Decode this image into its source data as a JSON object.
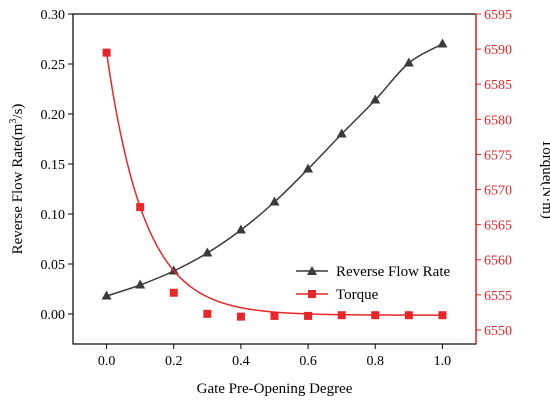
{
  "chart_data": {
    "type": "line",
    "xlabel": "Gate Pre-Opening Degree",
    "xlim": [
      -0.1,
      1.1
    ],
    "x_ticks": [
      "0.0",
      "0.2",
      "0.4",
      "0.6",
      "0.8",
      "1.0"
    ],
    "y_left": {
      "label_main": "Reverse Flow Rate(m",
      "label_sup": "3",
      "label_tail": "/s)",
      "lim": [
        -0.03,
        0.3
      ],
      "ticks": [
        "0.00",
        "0.05",
        "0.10",
        "0.15",
        "0.20",
        "0.25",
        "0.30"
      ],
      "color": "#000000"
    },
    "y_right": {
      "label": "Torque(N·m)",
      "lim": [
        6548,
        6595
      ],
      "ticks": [
        "6550",
        "6555",
        "6560",
        "6565",
        "6570",
        "6575",
        "6580",
        "6585",
        "6590",
        "6595"
      ],
      "color": "#e8262a"
    },
    "series": [
      {
        "name": "Reverse Flow Rate",
        "axis": "left",
        "color": "#3a3a3a",
        "marker": "triangle",
        "x": [
          0.0,
          0.1,
          0.2,
          0.3,
          0.4,
          0.5,
          0.6,
          0.7,
          0.8,
          0.9,
          1.0
        ],
        "values": [
          0.018,
          0.029,
          0.043,
          0.061,
          0.084,
          0.112,
          0.145,
          0.18,
          0.214,
          0.251,
          0.27
        ]
      },
      {
        "name": "Torque",
        "axis": "right",
        "color": "#e8262a",
        "marker": "square",
        "x": [
          0.0,
          0.1,
          0.2,
          0.3,
          0.4,
          0.5,
          0.6,
          0.7,
          0.8,
          0.9,
          1.0
        ],
        "values": [
          6589.5,
          6567.5,
          6555.3,
          6552.3,
          6551.9,
          6552.0,
          6552.0,
          6552.1,
          6552.1,
          6552.1,
          6552.1
        ]
      }
    ],
    "legend_position": "bottom-right"
  }
}
